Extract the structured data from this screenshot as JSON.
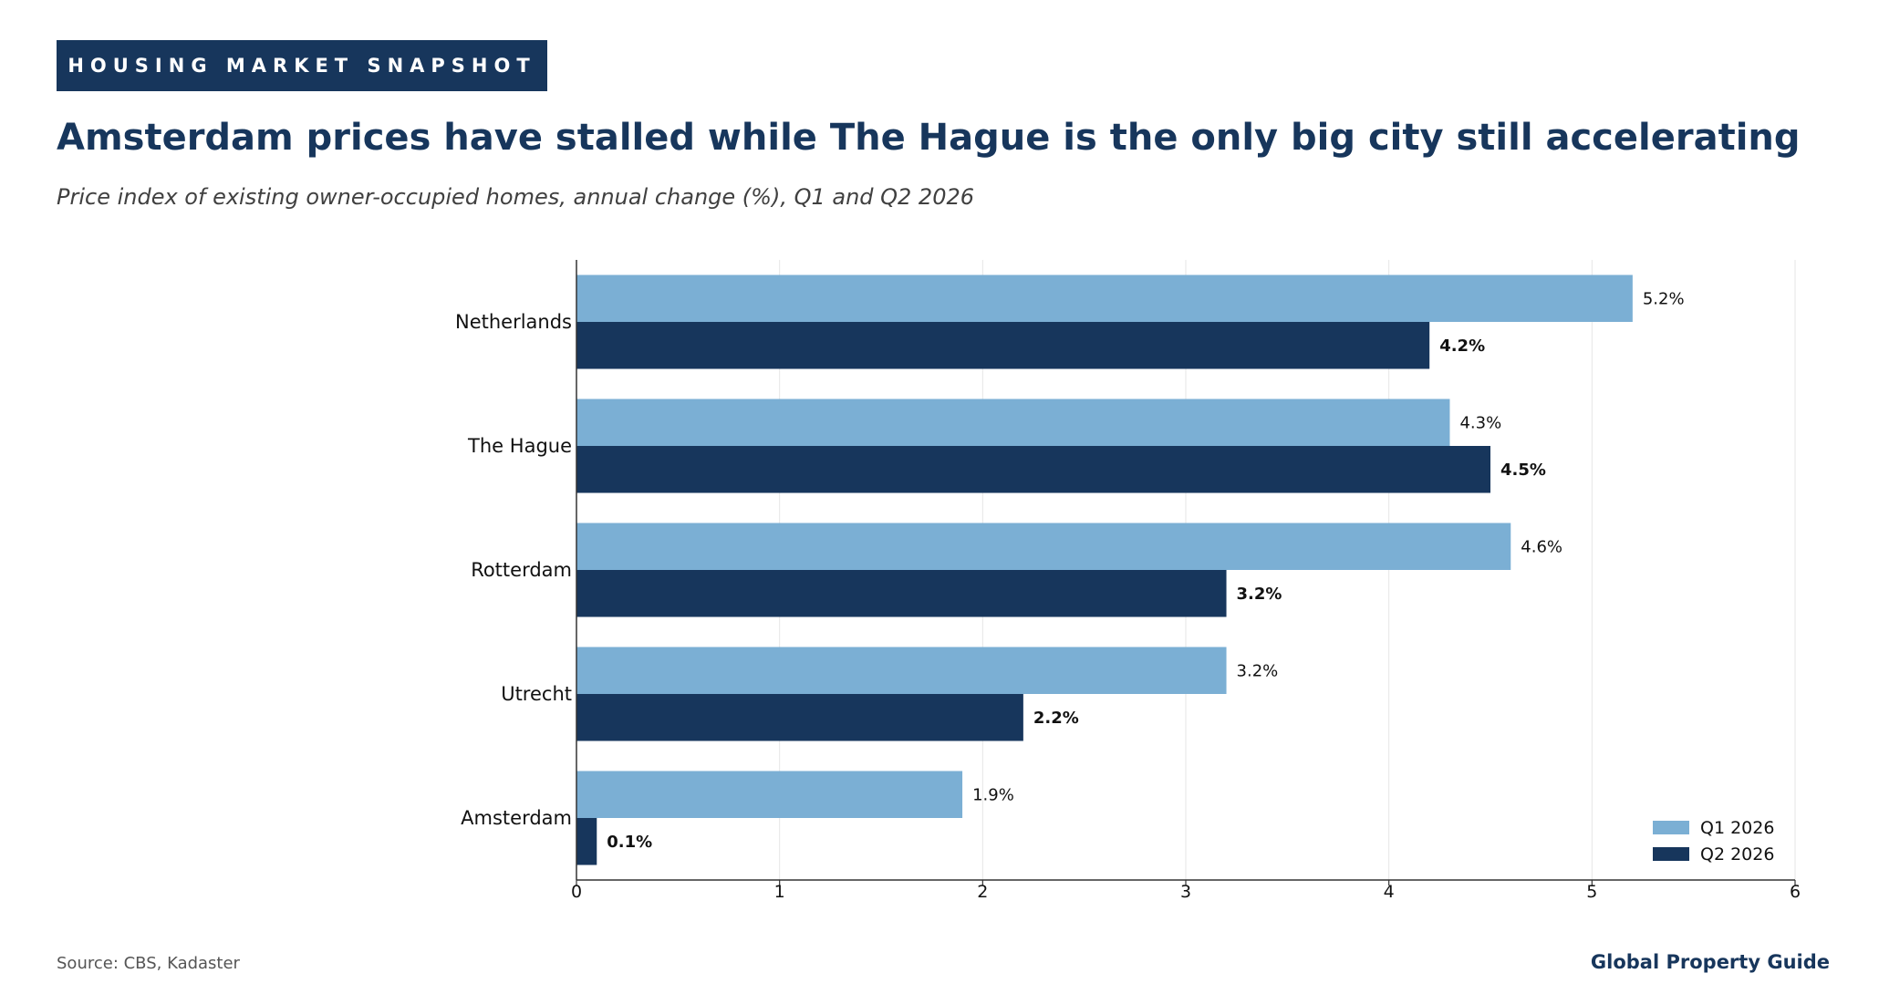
{
  "header": {
    "kicker": "HOUSING MARKET SNAPSHOT",
    "title": "Amsterdam prices have stalled while The Hague is the only big city still accelerating",
    "subtitle": "Price index of existing owner-occupied homes, annual change (%), Q1 and Q2 2026"
  },
  "footer": {
    "source": "Source: CBS, Kadaster",
    "brand": "Global Property Guide"
  },
  "colors": {
    "q1": "#7bafd4",
    "q2": "#17365c",
    "grid": "#e6e6e6",
    "axis": "#333333"
  },
  "chart_data": {
    "type": "bar",
    "orientation": "horizontal",
    "categories": [
      "Netherlands",
      "The Hague",
      "Rotterdam",
      "Utrecht",
      "Amsterdam"
    ],
    "series": [
      {
        "name": "Q1 2026",
        "values": [
          5.2,
          4.3,
          4.6,
          3.2,
          1.9
        ],
        "labels": [
          "5.2%",
          "4.3%",
          "4.6%",
          "3.2%",
          "1.9%"
        ]
      },
      {
        "name": "Q2 2026",
        "values": [
          4.2,
          4.5,
          3.2,
          2.2,
          0.1
        ],
        "labels": [
          "4.2%",
          "4.5%",
          "3.2%",
          "2.2%",
          "0.1%"
        ]
      }
    ],
    "xlim": [
      0,
      6
    ],
    "xticks": [
      "0",
      "1",
      "2",
      "3",
      "4",
      "5",
      "6"
    ],
    "grid": "vertical",
    "legend": "bottom-right"
  }
}
